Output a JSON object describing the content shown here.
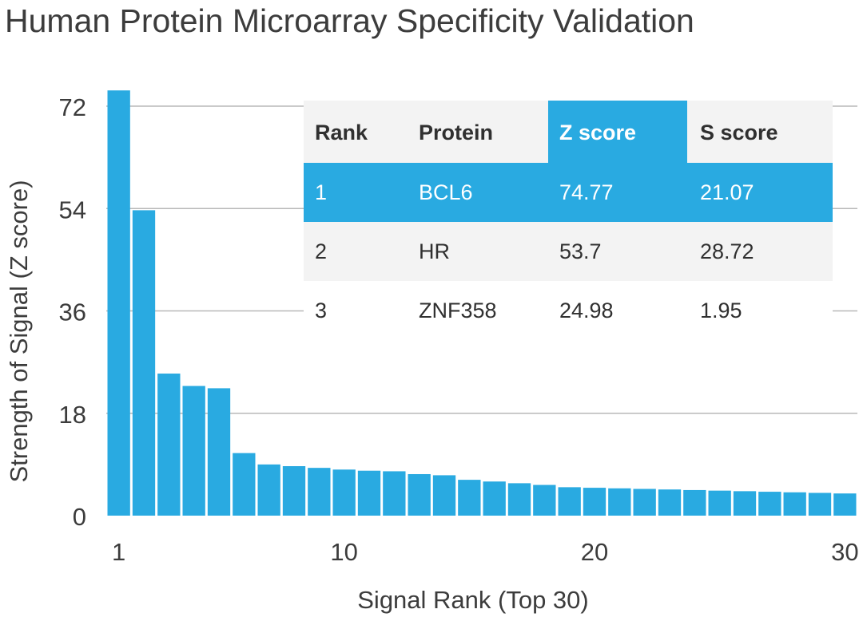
{
  "chart_data": {
    "type": "bar",
    "title": "Human Protein Microarray Specificity Validation",
    "xlabel": "Signal Rank (Top 30)",
    "ylabel": "Strength of Signal (Z score)",
    "ylim": [
      0,
      72
    ],
    "yticks": [
      "0",
      "18",
      "36",
      "54",
      "72"
    ],
    "xticks": [
      {
        "x": 1,
        "label": "1"
      },
      {
        "x": 10,
        "label": "10"
      },
      {
        "x": 20,
        "label": "20"
      },
      {
        "x": 30,
        "label": "30"
      }
    ],
    "grid": "horizontal",
    "color": "#29aae1",
    "x": [
      1,
      2,
      3,
      4,
      5,
      6,
      7,
      8,
      9,
      10,
      11,
      12,
      13,
      14,
      15,
      16,
      17,
      18,
      19,
      20,
      21,
      22,
      23,
      24,
      25,
      26,
      27,
      28,
      29,
      30
    ],
    "values": [
      74.77,
      53.7,
      24.98,
      22.8,
      22.4,
      11.0,
      9.0,
      8.7,
      8.4,
      8.1,
      7.9,
      7.8,
      7.3,
      7.1,
      6.3,
      6.0,
      5.7,
      5.4,
      5.0,
      4.9,
      4.8,
      4.7,
      4.6,
      4.5,
      4.4,
      4.3,
      4.2,
      4.1,
      4.0,
      3.9
    ]
  },
  "table": {
    "headers": [
      "Rank",
      "Protein",
      "Z score",
      "S score"
    ],
    "highlight_color": "#29aae1",
    "rows": [
      [
        "1",
        "BCL6",
        "74.77",
        "21.07"
      ],
      [
        "2",
        "HR",
        "53.7",
        "28.72"
      ],
      [
        "3",
        "ZNF358",
        "24.98",
        "1.95"
      ]
    ]
  }
}
